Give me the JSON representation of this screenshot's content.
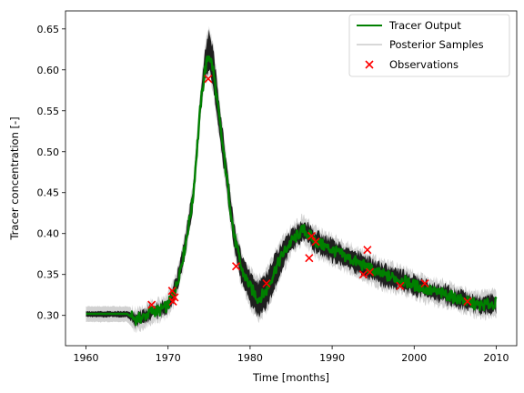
{
  "chart_data": {
    "type": "line",
    "xlabel": "Time [months]",
    "ylabel": "Tracer concentration [-]",
    "xlim": [
      1957.5,
      2012.5
    ],
    "ylim": [
      0.263,
      0.672
    ],
    "x_ticks": [
      1960,
      1970,
      1980,
      1990,
      2000,
      2010
    ],
    "y_ticks": [
      0.3,
      0.35,
      0.4,
      0.45,
      0.5,
      0.55,
      0.6,
      0.65
    ],
    "x_tick_labels": [
      "1960",
      "1970",
      "1980",
      "1990",
      "2000",
      "2010"
    ],
    "y_tick_labels": [
      "0.30",
      "0.35",
      "0.40",
      "0.45",
      "0.50",
      "0.55",
      "0.60",
      "0.65"
    ],
    "grid": false,
    "legend_position": "top-right",
    "series": [
      {
        "name": "Tracer Output",
        "kind": "line",
        "color": "#008000",
        "x": [
          1960,
          1965,
          1966,
          1967,
          1968,
          1969,
          1970,
          1971,
          1972,
          1973,
          1973.5,
          1974,
          1974.5,
          1975,
          1975.5,
          1976,
          1977,
          1978,
          1979,
          1980,
          1981,
          1982,
          1983,
          1984,
          1985,
          1986,
          1986.5,
          1987,
          1988,
          1990,
          1992,
          1994,
          1996,
          1998,
          2000,
          2002,
          2004,
          2006,
          2008,
          2010
        ],
        "y": [
          0.302,
          0.302,
          0.295,
          0.298,
          0.305,
          0.306,
          0.312,
          0.335,
          0.38,
          0.44,
          0.5,
          0.56,
          0.6,
          0.62,
          0.6,
          0.56,
          0.48,
          0.4,
          0.355,
          0.335,
          0.32,
          0.33,
          0.355,
          0.375,
          0.39,
          0.4,
          0.405,
          0.4,
          0.39,
          0.38,
          0.37,
          0.36,
          0.35,
          0.345,
          0.337,
          0.33,
          0.325,
          0.318,
          0.312,
          0.315
        ]
      },
      {
        "name": "Posterior Samples",
        "kind": "band",
        "color": "#000000",
        "x": [
          1960,
          1965,
          1966,
          1967,
          1968,
          1969,
          1970,
          1971,
          1972,
          1973,
          1973.5,
          1974,
          1974.5,
          1975,
          1975.5,
          1976,
          1977,
          1978,
          1979,
          1980,
          1981,
          1982,
          1983,
          1984,
          1985,
          1986,
          1986.5,
          1987,
          1988,
          1990,
          1992,
          1994,
          1996,
          1998,
          2000,
          2002,
          2004,
          2006,
          2008,
          2010
        ],
        "lower": [
          0.298,
          0.298,
          0.288,
          0.292,
          0.298,
          0.3,
          0.305,
          0.325,
          0.37,
          0.43,
          0.49,
          0.55,
          0.59,
          0.6,
          0.58,
          0.54,
          0.465,
          0.385,
          0.34,
          0.315,
          0.3,
          0.31,
          0.335,
          0.36,
          0.38,
          0.39,
          0.395,
          0.39,
          0.378,
          0.368,
          0.358,
          0.348,
          0.338,
          0.334,
          0.327,
          0.321,
          0.316,
          0.309,
          0.303,
          0.305
        ],
        "upper": [
          0.305,
          0.305,
          0.302,
          0.305,
          0.312,
          0.313,
          0.32,
          0.345,
          0.392,
          0.452,
          0.512,
          0.575,
          0.625,
          0.648,
          0.625,
          0.582,
          0.497,
          0.415,
          0.37,
          0.352,
          0.34,
          0.35,
          0.372,
          0.39,
          0.403,
          0.412,
          0.415,
          0.41,
          0.401,
          0.391,
          0.381,
          0.371,
          0.361,
          0.355,
          0.347,
          0.339,
          0.334,
          0.327,
          0.321,
          0.324
        ]
      },
      {
        "name": "Observations",
        "kind": "scatter",
        "color": "#ff0000",
        "marker": "x",
        "x": [
          1968.0,
          1970.5,
          1970.6,
          1970.8,
          1974.9,
          1978.3,
          1982.0,
          1987.2,
          1987.5,
          1988.0,
          1993.8,
          1994.3,
          1994.6,
          1998.3,
          2001.3,
          2006.5
        ],
        "y": [
          0.313,
          0.33,
          0.317,
          0.322,
          0.589,
          0.36,
          0.339,
          0.37,
          0.397,
          0.39,
          0.35,
          0.38,
          0.353,
          0.336,
          0.339,
          0.317
        ]
      }
    ]
  }
}
